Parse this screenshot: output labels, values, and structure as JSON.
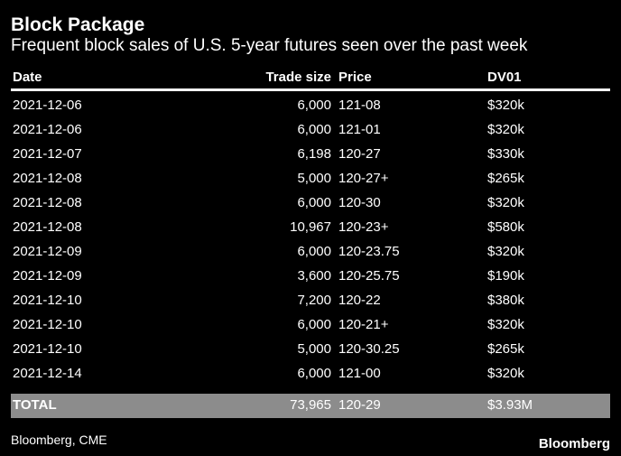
{
  "header": {
    "title": "Block Package",
    "subtitle": "Frequent block sales of U.S. 5-year futures seen over the past week"
  },
  "table": {
    "columns": [
      "Date",
      "Trade size",
      "Price",
      "DV01"
    ],
    "rows": [
      [
        "2021-12-06",
        "6,000",
        "121-08",
        "$320k"
      ],
      [
        "2021-12-06",
        "6,000",
        "121-01",
        "$320k"
      ],
      [
        "2021-12-07",
        "6,198",
        "120-27",
        "$330k"
      ],
      [
        "2021-12-08",
        "5,000",
        "120-27+",
        "$265k"
      ],
      [
        "2021-12-08",
        "6,000",
        "120-30",
        "$320k"
      ],
      [
        "2021-12-08",
        "10,967",
        "120-23+",
        "$580k"
      ],
      [
        "2021-12-09",
        "6,000",
        "120-23.75",
        "$320k"
      ],
      [
        "2021-12-09",
        "3,600",
        "120-25.75",
        "$190k"
      ],
      [
        "2021-12-10",
        "7,200",
        "120-22",
        "$380k"
      ],
      [
        "2021-12-10",
        "6,000",
        "120-21+",
        "$320k"
      ],
      [
        "2021-12-10",
        "5,000",
        "120-30.25",
        "$265k"
      ],
      [
        "2021-12-14",
        "6,000",
        "121-00",
        "$320k"
      ]
    ],
    "total": [
      "TOTAL",
      "73,965",
      "120-29",
      "$3.93M"
    ]
  },
  "footer": {
    "source": "Bloomberg, CME",
    "logo": "Bloomberg"
  }
}
